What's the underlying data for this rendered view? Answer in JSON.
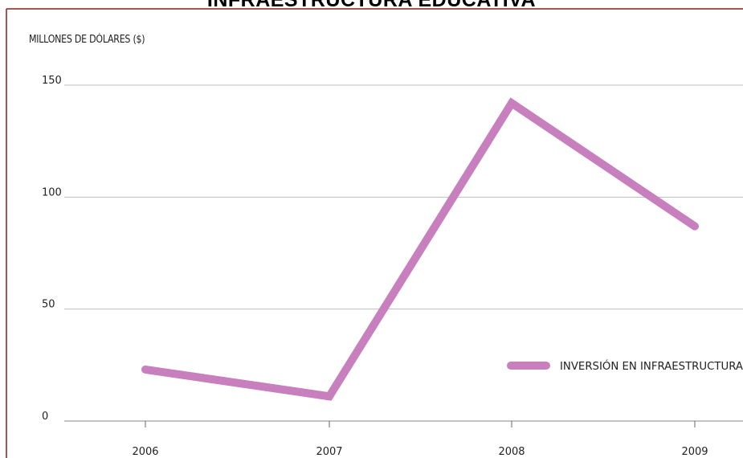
{
  "chart_data": {
    "type": "line",
    "title": "INFRAESTRUCTURA EDUCATIVA",
    "ylabel": "MILLONES DE DÓLARES ($)",
    "xlabel": "",
    "categories": [
      "2006",
      "2007",
      "2008",
      "2009"
    ],
    "yticks": [
      0,
      50,
      100,
      150
    ],
    "ylim": [
      0,
      150
    ],
    "grid": true,
    "legend_position": "lower-right",
    "series": [
      {
        "name": "INVERSIÓN EN INFRAESTRUCTURA",
        "values": [
          23,
          11,
          142,
          87
        ],
        "color": "#c77fbd"
      }
    ],
    "frame_color": "#8a1f1f",
    "grid_color": "#bdbdbd"
  }
}
